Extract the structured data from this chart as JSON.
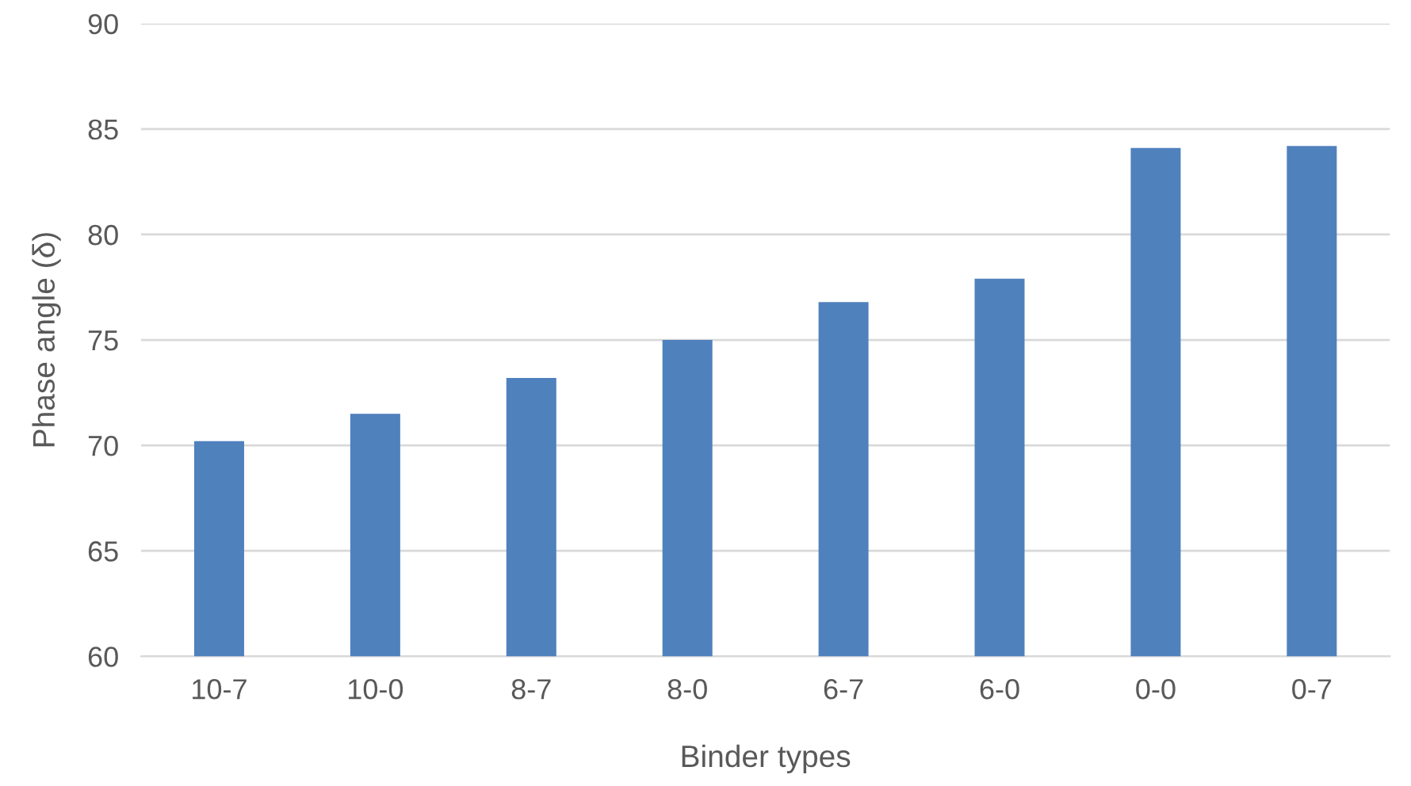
{
  "chart_data": {
    "type": "bar",
    "xlabel": "Binder types",
    "ylabel": "Phase angle (δ)",
    "categories": [
      "10-7",
      "10-0",
      "8-7",
      "8-0",
      "6-7",
      "6-0",
      "0-0",
      "0-7"
    ],
    "values": [
      70.2,
      71.5,
      73.2,
      75.0,
      76.8,
      77.9,
      84.1,
      84.2
    ],
    "color": "#4f81bd",
    "ylim": [
      60,
      90
    ],
    "yticks": [
      60,
      65,
      70,
      75,
      80,
      85,
      90
    ],
    "grid": "y",
    "legend": false
  }
}
